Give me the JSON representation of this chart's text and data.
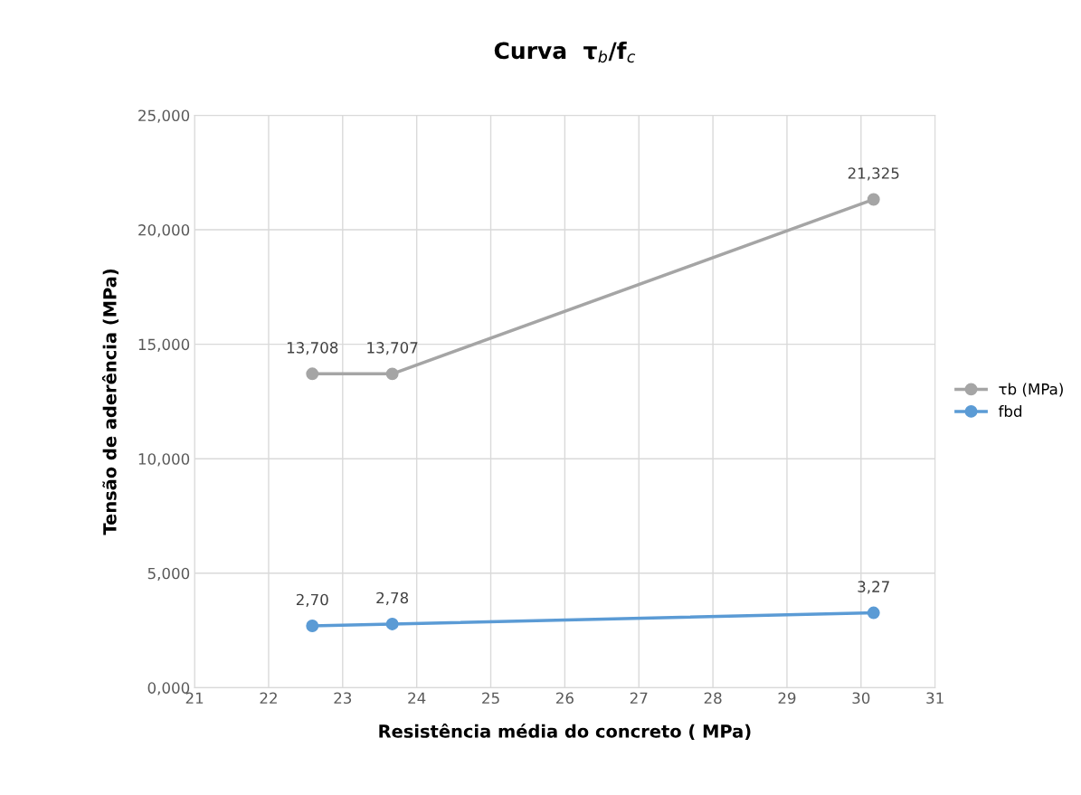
{
  "chart_data": {
    "type": "line",
    "title": "Curva  τ$_{b}$/f$_{c}$",
    "xlabel": "Resistência média do concreto ( MPa)",
    "ylabel": "Tensão de aderência (MPa)",
    "series": [
      {
        "name": "τb (MPa)",
        "color": "#a5a5a5",
        "x": [
          22.59,
          23.67,
          30.17
        ],
        "values": [
          13.708,
          13.707,
          21.325
        ],
        "value_labels": [
          "13,708",
          "13,707",
          "21,325"
        ]
      },
      {
        "name": "fbd",
        "color": "#5b9bd5",
        "x": [
          22.59,
          23.67,
          30.17
        ],
        "values": [
          2.7,
          2.78,
          3.27
        ],
        "value_labels": [
          "2,70",
          "2,78",
          "3,27"
        ]
      }
    ],
    "xlim": [
      21,
      31
    ],
    "xticks": [
      21,
      22,
      23,
      24,
      25,
      26,
      27,
      28,
      29,
      30,
      31
    ],
    "ylim": [
      0,
      25
    ],
    "yticks": [
      {
        "value": 0,
        "label": "0,000"
      },
      {
        "value": 5,
        "label": "5,000"
      },
      {
        "value": 10,
        "label": "10,000"
      },
      {
        "value": 15,
        "label": "15,000"
      },
      {
        "value": 20,
        "label": "20,000"
      },
      {
        "value": 25,
        "label": "25,000"
      }
    ],
    "grid": true,
    "legend": "right",
    "marker": "circle",
    "line_style": "solid"
  }
}
